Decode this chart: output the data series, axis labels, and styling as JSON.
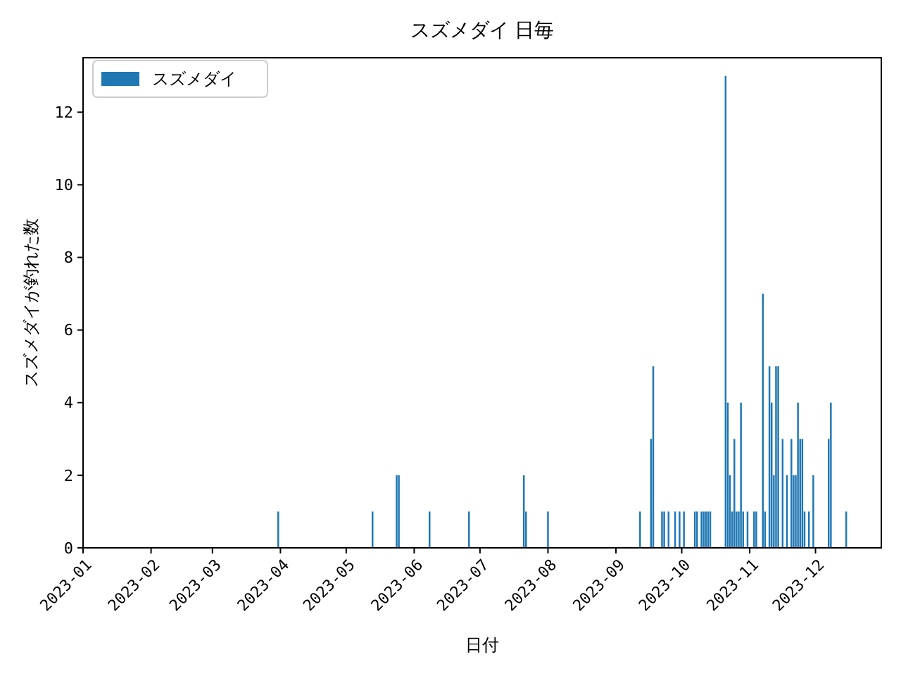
{
  "chart_data": {
    "type": "bar",
    "title": "スズメダイ 日毎",
    "xlabel": "日付",
    "ylabel": "スズメダイが釣れた数",
    "x": [
      "2023-03-31",
      "2023-05-13",
      "2023-05-24",
      "2023-05-25",
      "2023-06-08",
      "2023-06-26",
      "2023-07-21",
      "2023-07-22",
      "2023-08-01",
      "2023-09-12",
      "2023-09-17",
      "2023-09-18",
      "2023-09-22",
      "2023-09-23",
      "2023-09-25",
      "2023-09-28",
      "2023-09-30",
      "2023-10-02",
      "2023-10-07",
      "2023-10-08",
      "2023-10-10",
      "2023-10-11",
      "2023-10-12",
      "2023-10-13",
      "2023-10-14",
      "2023-10-21",
      "2023-10-22",
      "2023-10-23",
      "2023-10-24",
      "2023-10-25",
      "2023-10-26",
      "2023-10-27",
      "2023-10-28",
      "2023-10-29",
      "2023-10-31",
      "2023-11-03",
      "2023-11-04",
      "2023-11-07",
      "2023-11-08",
      "2023-11-10",
      "2023-11-11",
      "2023-11-12",
      "2023-11-13",
      "2023-11-14",
      "2023-11-16",
      "2023-11-18",
      "2023-11-20",
      "2023-11-21",
      "2023-11-22",
      "2023-11-23",
      "2023-11-24",
      "2023-11-25",
      "2023-11-26",
      "2023-11-28",
      "2023-11-30",
      "2023-12-07",
      "2023-12-08",
      "2023-12-15"
    ],
    "series": [
      {
        "name": "スズメダイ",
        "color": "#1f77b4",
        "values": [
          1,
          1,
          2,
          2,
          1,
          1,
          2,
          1,
          1,
          1,
          3,
          5,
          1,
          1,
          1,
          1,
          1,
          1,
          1,
          1,
          1,
          1,
          1,
          1,
          1,
          13,
          4,
          2,
          1,
          3,
          1,
          1,
          4,
          1,
          1,
          1,
          1,
          7,
          1,
          5,
          4,
          2,
          5,
          5,
          3,
          2,
          3,
          2,
          2,
          4,
          3,
          3,
          1,
          1,
          2,
          3,
          4,
          1
        ]
      }
    ],
    "xlim": [
      "2023-01-01",
      "2023-12-31"
    ],
    "xticks": [
      {
        "value": "2023-01-01",
        "label": "2023-01"
      },
      {
        "value": "2023-02-01",
        "label": "2023-02"
      },
      {
        "value": "2023-03-01",
        "label": "2023-03"
      },
      {
        "value": "2023-04-01",
        "label": "2023-04"
      },
      {
        "value": "2023-05-01",
        "label": "2023-05"
      },
      {
        "value": "2023-06-01",
        "label": "2023-06"
      },
      {
        "value": "2023-07-01",
        "label": "2023-07"
      },
      {
        "value": "2023-08-01",
        "label": "2023-08"
      },
      {
        "value": "2023-09-01",
        "label": "2023-09"
      },
      {
        "value": "2023-10-01",
        "label": "2023-10"
      },
      {
        "value": "2023-11-01",
        "label": "2023-11"
      },
      {
        "value": "2023-12-01",
        "label": "2023-12"
      }
    ],
    "ylim": [
      0,
      13.5
    ],
    "yticks": [
      0,
      2,
      4,
      6,
      8,
      10,
      12
    ],
    "legend": "top left",
    "grid": false
  }
}
